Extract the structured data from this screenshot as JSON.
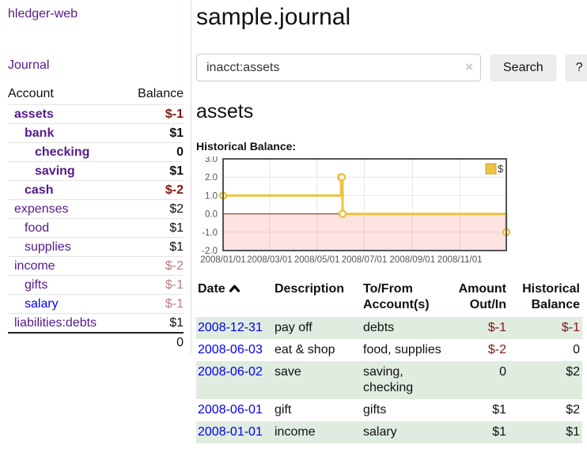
{
  "app": {
    "brand": "hledger-web"
  },
  "sidebar": {
    "journal_link": "Journal",
    "columns": {
      "account": "Account",
      "balance": "Balance"
    },
    "accounts": [
      {
        "name": "assets",
        "balance": "$-1",
        "level": 1,
        "bold": true,
        "neg": "dark"
      },
      {
        "name": "bank",
        "balance": "$1",
        "level": 2,
        "bold": true
      },
      {
        "name": "checking",
        "balance": "0",
        "level": 3,
        "bold": true
      },
      {
        "name": "saving",
        "balance": "$1",
        "level": 3,
        "bold": true
      },
      {
        "name": "cash",
        "balance": "$-2",
        "level": 2,
        "bold": true,
        "neg": "dark"
      },
      {
        "name": "expenses",
        "balance": "$2",
        "level": 1,
        "bold": false
      },
      {
        "name": "food",
        "balance": "$1",
        "level": 2,
        "bold": false
      },
      {
        "name": "supplies",
        "balance": "$1",
        "level": 2,
        "bold": false
      },
      {
        "name": "income",
        "balance": "$-2",
        "level": 1,
        "bold": false,
        "neg": "light"
      },
      {
        "name": "gifts",
        "balance": "$-1",
        "level": 2,
        "bold": false,
        "neg": "light"
      },
      {
        "name": "salary",
        "balance": "$-1",
        "level": 2,
        "bold": false,
        "neg": "light",
        "blue": true
      },
      {
        "name": "liabilities:debts",
        "balance": "$1",
        "level": 1,
        "bold": false
      }
    ],
    "total": "0"
  },
  "header": {
    "title": "sample.journal"
  },
  "search": {
    "value": "inacct:assets",
    "clear_icon": "×",
    "button_label": "Search",
    "help_label": "?"
  },
  "account_page": {
    "heading": "assets",
    "chart_title": "Historical Balance:"
  },
  "chart_data": {
    "type": "line",
    "title": "Historical Balance:",
    "step": true,
    "series": [
      {
        "name": "$",
        "color": "#EDC240",
        "points": [
          [
            "2008-01-01",
            1
          ],
          [
            "2008-06-01",
            2
          ],
          [
            "2008-06-02",
            2
          ],
          [
            "2008-06-03",
            0
          ],
          [
            "2008-12-31",
            -1
          ]
        ]
      }
    ],
    "x_range": [
      "2008-01-01",
      "2008-12-31"
    ],
    "x_ticks": [
      "2008/01/01",
      "2008/03/01",
      "2008/05/01",
      "2008/07/01",
      "2008/09/01",
      "2008/11/01"
    ],
    "y_ticks": [
      3.0,
      2.0,
      1.0,
      0.0,
      -1.0,
      -2.0
    ],
    "ylim": [
      -2,
      3
    ],
    "grid": true,
    "legend_position": "top-right",
    "negative_region_color": "rgba(255,80,80,0.16)",
    "zero_line_color": "#8b1a1a"
  },
  "transactions": {
    "headers": {
      "date": "Date",
      "description": "Description",
      "accounts": "To/From Account(s)",
      "amount": "Amount Out/In",
      "balance": "Historical Balance"
    },
    "sort_indicator": "up",
    "rows": [
      {
        "date": "2008-12-31",
        "description": "pay off",
        "accounts": "debts",
        "amount": "$-1",
        "amount_neg": true,
        "balance": "$-1",
        "balance_neg": true
      },
      {
        "date": "2008-06-03",
        "description": "eat & shop",
        "accounts": "food, supplies",
        "amount": "$-2",
        "amount_neg": true,
        "balance": "0",
        "balance_neg": false
      },
      {
        "date": "2008-06-02",
        "description": "save",
        "accounts": "saving, checking",
        "amount": "0",
        "amount_neg": false,
        "balance": "$2",
        "balance_neg": false
      },
      {
        "date": "2008-06-01",
        "description": "gift",
        "accounts": "gifts",
        "amount": "$1",
        "amount_neg": false,
        "balance": "$2",
        "balance_neg": false
      },
      {
        "date": "2008-01-01",
        "description": "income",
        "accounts": "salary",
        "amount": "$1",
        "amount_neg": false,
        "balance": "$1",
        "balance_neg": false
      }
    ]
  }
}
